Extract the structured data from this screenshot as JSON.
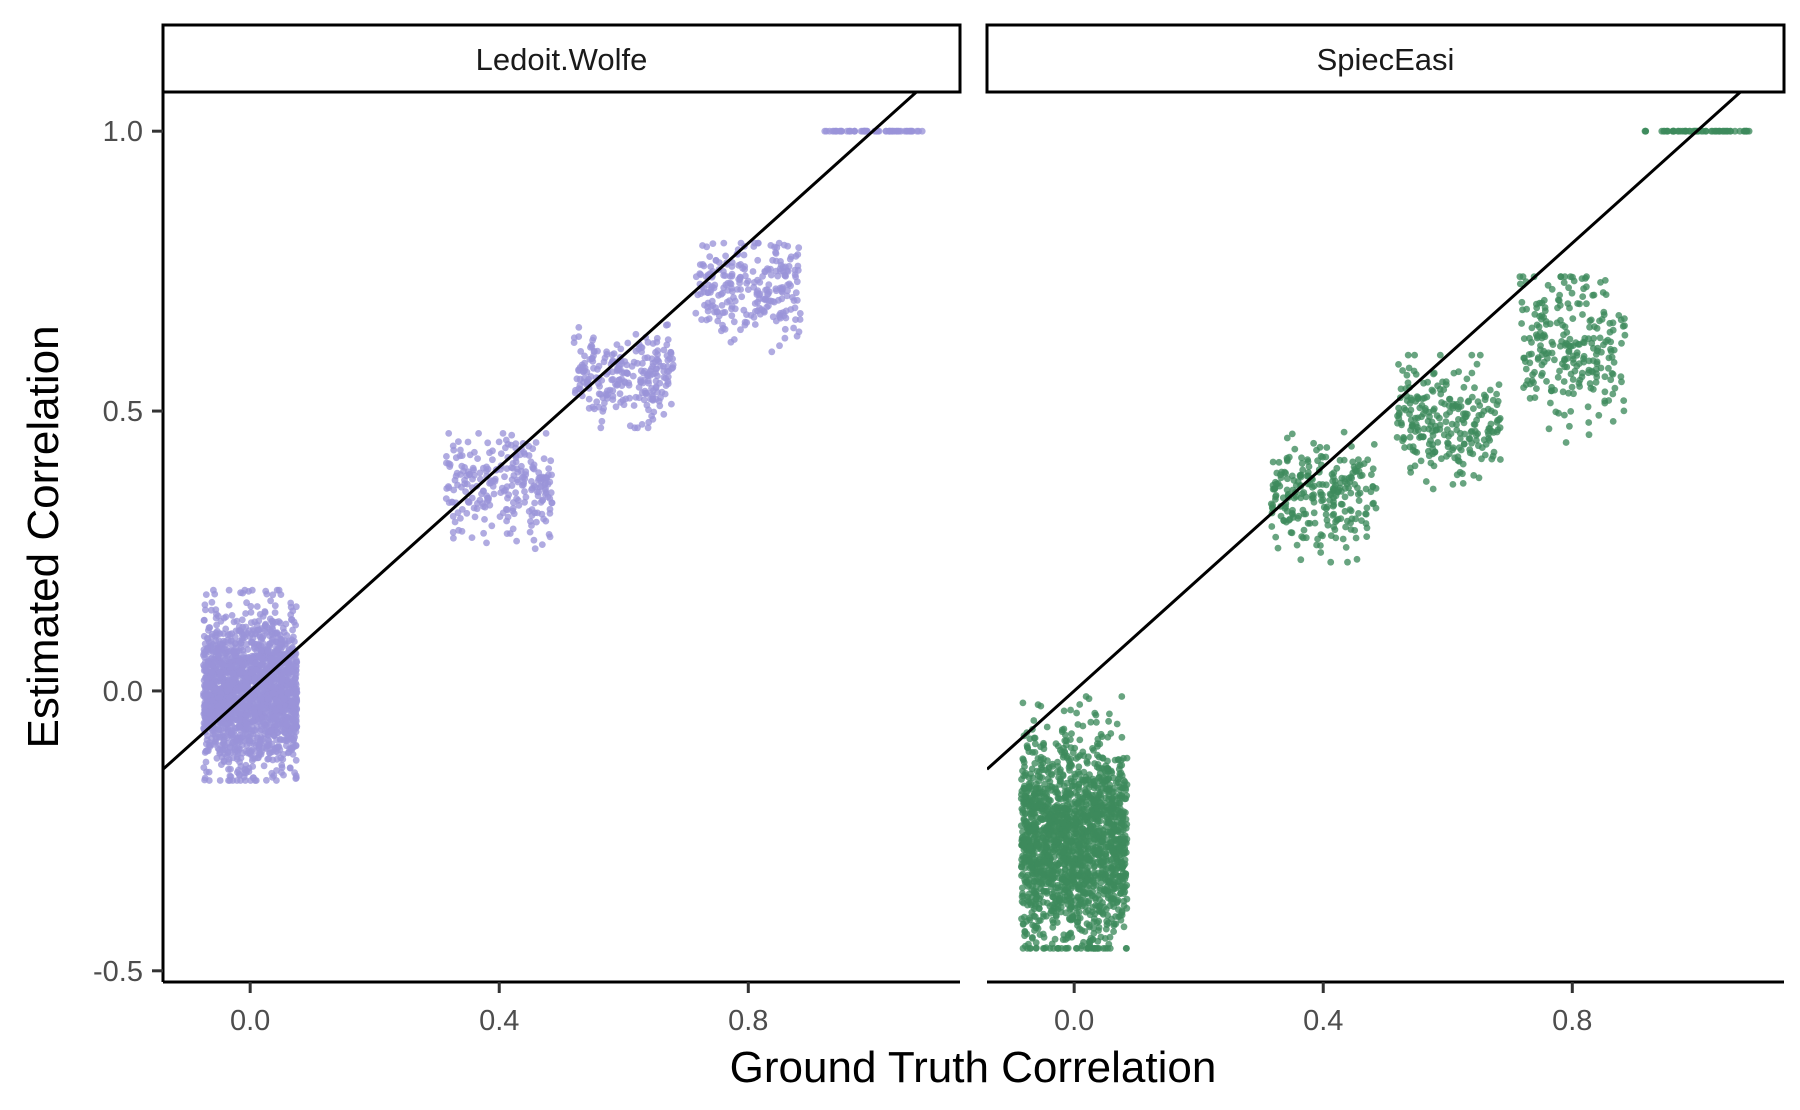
{
  "chart_data": {
    "type": "scatter",
    "xlabel": "Ground Truth Correlation",
    "ylabel": "Estimated Correlation",
    "xlim": [
      -0.14,
      1.14
    ],
    "ylim": [
      -0.52,
      1.07
    ],
    "x_ticks": [
      0.0,
      0.4,
      0.8
    ],
    "x_tick_labels": [
      "0.0",
      "0.4",
      "0.8"
    ],
    "y_ticks": [
      -0.5,
      0.0,
      0.5,
      1.0
    ],
    "y_tick_labels": [
      "-0.5",
      "0.0",
      "0.5",
      "1.0"
    ],
    "grid": false,
    "reference_line": {
      "type": "identity",
      "slope": 1,
      "intercept": 0,
      "color": "#000000"
    },
    "panels": [
      {
        "title": "Ledoit.Wolfe",
        "color": "#9a93d9",
        "clusters": [
          {
            "x": 0.0,
            "x_spread": 0.075,
            "y_center": 0.0,
            "y_min": -0.16,
            "y_max": 0.18,
            "n_points": 1800
          },
          {
            "x": 0.4,
            "x_spread": 0.085,
            "y_center": 0.37,
            "y_min": 0.25,
            "y_max": 0.46,
            "n_points": 250
          },
          {
            "x": 0.6,
            "x_spread": 0.08,
            "y_center": 0.56,
            "y_min": 0.47,
            "y_max": 0.66,
            "n_points": 250
          },
          {
            "x": 0.8,
            "x_spread": 0.085,
            "y_center": 0.72,
            "y_min": 0.59,
            "y_max": 0.8,
            "n_points": 250
          },
          {
            "x": 1.0,
            "x_spread": 0.08,
            "y_center": 1.0,
            "y_min": 1.0,
            "y_max": 1.0,
            "n_points": 60
          }
        ]
      },
      {
        "title": "SpiecEasi",
        "color": "#3e8a5c",
        "clusters": [
          {
            "x": 0.0,
            "x_spread": 0.085,
            "y_center": -0.27,
            "y_min": -0.46,
            "y_max": -0.01,
            "n_points": 1800
          },
          {
            "x": 0.4,
            "x_spread": 0.085,
            "y_center": 0.35,
            "y_min": 0.23,
            "y_max": 0.47,
            "n_points": 250
          },
          {
            "x": 0.6,
            "x_spread": 0.085,
            "y_center": 0.48,
            "y_min": 0.36,
            "y_max": 0.6,
            "n_points": 250
          },
          {
            "x": 0.8,
            "x_spread": 0.085,
            "y_center": 0.62,
            "y_min": 0.42,
            "y_max": 0.74,
            "n_points": 250
          },
          {
            "x": 1.0,
            "x_spread": 0.085,
            "y_center": 1.0,
            "y_min": 1.0,
            "y_max": 1.0,
            "n_points": 60
          }
        ]
      }
    ]
  }
}
